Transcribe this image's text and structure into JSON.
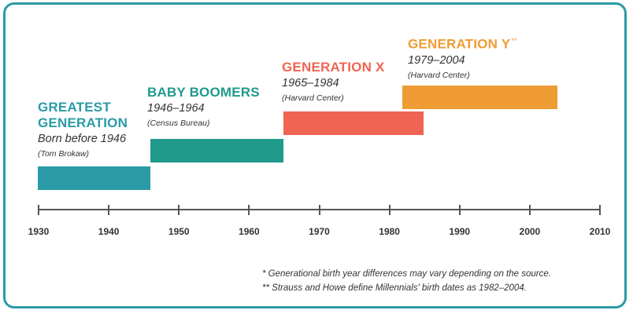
{
  "colors": {
    "frame": "#2a9ba6",
    "greatest": "#2a9ba6",
    "boomers": "#1f9a8b",
    "genx": "#ef6452",
    "geny": "#ee9c33",
    "axis": "#555555"
  },
  "generations": [
    {
      "title_lines": [
        "GREATEST",
        "GENERATION"
      ],
      "years": "Born before 1946",
      "source": "(Tom Brokaw)",
      "start": 1930,
      "end": 1946,
      "color_key": "greatest"
    },
    {
      "title_lines": [
        "BABY BOOMERS"
      ],
      "years": "1946–1964",
      "source": "(Census Bureau)",
      "start": 1946,
      "end": 1965,
      "color_key": "boomers"
    },
    {
      "title_lines": [
        "GENERATION X"
      ],
      "years": "1965–1984",
      "source": "(Harvard Center)",
      "start": 1965,
      "end": 1985,
      "color_key": "genx"
    },
    {
      "title_lines": [
        "GENERATION Y"
      ],
      "title_mark": "**",
      "years": "1979–2004",
      "source": "(Harvard Center)",
      "start": 1982,
      "end": 2004,
      "color_key": "geny"
    }
  ],
  "axis": {
    "min": 1930,
    "max": 2010,
    "ticks": [
      "1930",
      "1940",
      "1950",
      "1960",
      "1970",
      "1980",
      "1990",
      "2000",
      "2010"
    ]
  },
  "footnotes": [
    "*  Generational birth year differences may vary depending on the source.",
    "** Strauss and Howe define Millennials' birth dates as 1982–2004."
  ]
}
